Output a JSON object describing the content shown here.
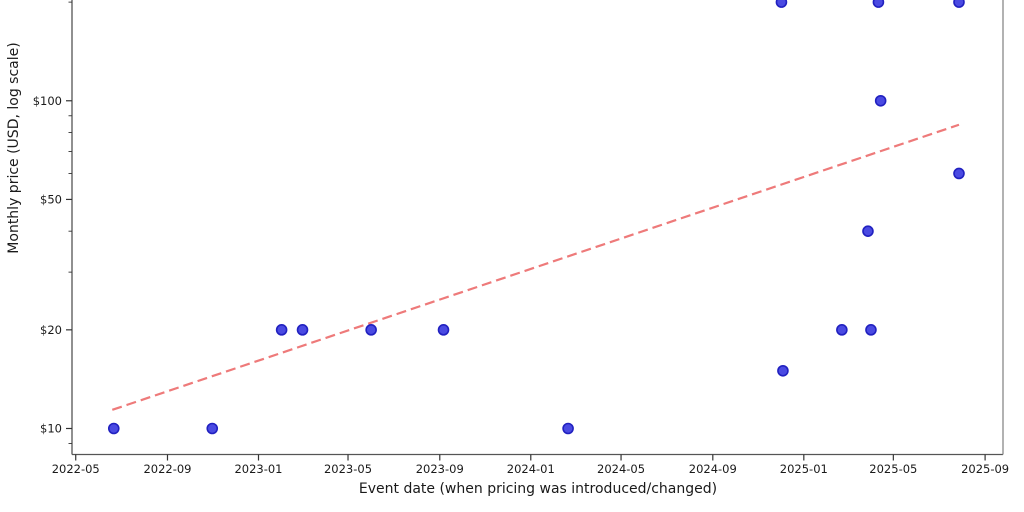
{
  "chart_data": {
    "type": "scatter",
    "xlabel": "Event date (when pricing was introduced/changed)",
    "ylabel": "Monthly price (USD, log scale)",
    "x_scale": "time",
    "y_scale": "log",
    "x_ticks": [
      "2022-05",
      "2022-09",
      "2023-01",
      "2023-05",
      "2023-09",
      "2024-01",
      "2024-05",
      "2024-09",
      "2025-01",
      "2025-05",
      "2025-09"
    ],
    "y_ticks": [
      {
        "label": "$10",
        "value": 10
      },
      {
        "label": "$20",
        "value": 20
      },
      {
        "label": "$50",
        "value": 50
      },
      {
        "label": "$100",
        "value": 100
      }
    ],
    "y_minor_ticks": [
      9,
      30,
      40,
      60,
      70,
      80,
      90,
      200
    ],
    "x_range": {
      "min_date": "2022-04-26",
      "max_date": "2025-09-25"
    },
    "y_range": {
      "min": 8.33,
      "max": 203
    },
    "grid": false,
    "legend": "none",
    "top_spine": false,
    "points": [
      {
        "date": "2022-06-21",
        "price": 10
      },
      {
        "date": "2022-10-31",
        "price": 10
      },
      {
        "date": "2023-02-01",
        "price": 20
      },
      {
        "date": "2023-03-01",
        "price": 20
      },
      {
        "date": "2023-06-01",
        "price": 20
      },
      {
        "date": "2023-09-06",
        "price": 20
      },
      {
        "date": "2024-02-20",
        "price": 10
      },
      {
        "date": "2024-12-02",
        "price": 200
      },
      {
        "date": "2024-12-04",
        "price": 15
      },
      {
        "date": "2025-02-21",
        "price": 20
      },
      {
        "date": "2025-03-28",
        "price": 40
      },
      {
        "date": "2025-04-01",
        "price": 20
      },
      {
        "date": "2025-04-11",
        "price": 200
      },
      {
        "date": "2025-04-14",
        "price": 100
      },
      {
        "date": "2025-07-28",
        "price": 200
      },
      {
        "date": "2025-07-28",
        "price": 60
      }
    ],
    "trend": {
      "style": "dashed",
      "start": {
        "date": "2022-06-19",
        "price": 11.4
      },
      "end": {
        "date": "2025-07-28",
        "price": 84.5
      }
    },
    "colors": {
      "point_fill": "#3b3be0",
      "point_edge": "#2121c0",
      "trend": "#ee7a7a",
      "spine": "#555555",
      "right_spine": "#888888",
      "tick": "#333333",
      "text": "#1a1a1a"
    }
  }
}
